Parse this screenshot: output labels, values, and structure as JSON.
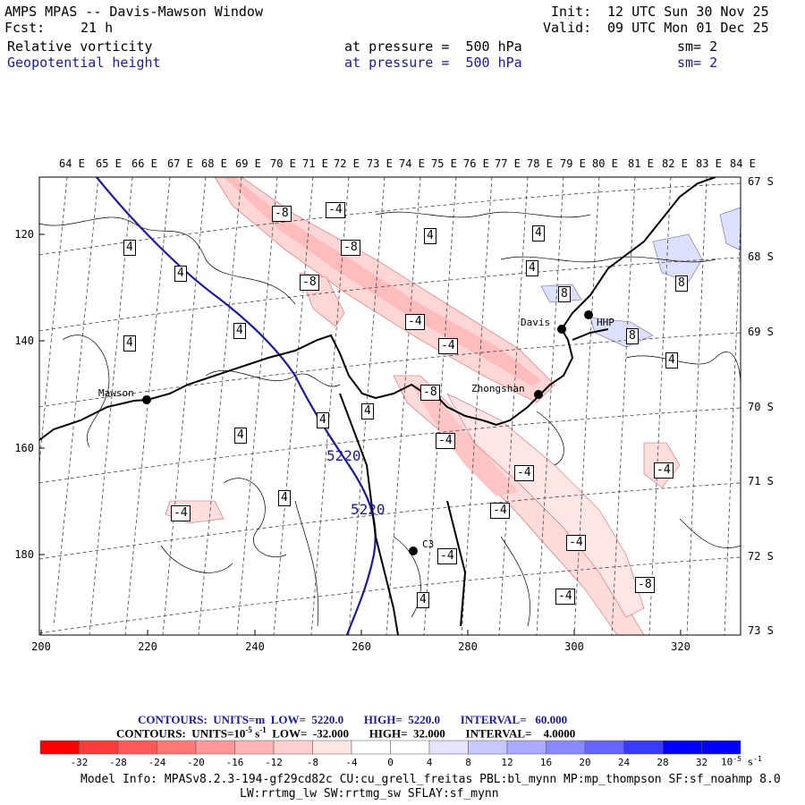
{
  "header": {
    "title": "AMPS MPAS -- Davis-Mawson Window",
    "forecast_label": "Fcst:",
    "forecast_value": "21 h",
    "init_label": "Init:",
    "init_value": "12 UTC Sun 30 Nov 25",
    "valid_label": "Valid:",
    "valid_value": "09 UTC Mon 01 Dec 25"
  },
  "fields": [
    {
      "name": "Relative vorticity",
      "level": "at pressure =  500 hPa",
      "smooth": "sm= 2",
      "color": "#000000"
    },
    {
      "name": "Geopotential height",
      "level": "at pressure =  500 hPa",
      "smooth": "sm= 2",
      "color": "#1a1a9a"
    }
  ],
  "map": {
    "lon_labels": [
      "64 E",
      "65 E",
      "66 E",
      "67 E",
      "68 E",
      "69 E",
      "70 E",
      "71 E",
      "72 E",
      "73 E",
      "74 E",
      "75 E",
      "76 E",
      "77 E",
      "78 E",
      "79 E",
      "80 E",
      "81 E",
      "82 E",
      "83 E",
      "84 E"
    ],
    "lat_labels": [
      "67 S",
      "68 S",
      "69 S",
      "70 S",
      "71 S",
      "72 S",
      "73 S"
    ],
    "y_ticks": [
      "120",
      "140",
      "160",
      "180"
    ],
    "x_ticks": [
      "200",
      "220",
      "240",
      "260",
      "280",
      "300",
      "320"
    ],
    "stations": [
      {
        "name": "Mawson"
      },
      {
        "name": "Davis"
      },
      {
        "name": "HHP"
      },
      {
        "name": "Zhongshan"
      },
      {
        "name": "C3"
      }
    ],
    "contour_labels": [
      "-8",
      "-4",
      "-8",
      "-8",
      "-4",
      "-4",
      "-8",
      "-4",
      "-4",
      "-4",
      "-4",
      "-8",
      "-4",
      "-4",
      "-4",
      "-4",
      "4",
      "4",
      "4",
      "4",
      "4",
      "4",
      "4",
      "4",
      "4",
      "4",
      "4",
      "4",
      "8",
      "8",
      "8",
      "4",
      "5220",
      "5220"
    ]
  },
  "contours_info": {
    "line1": "CONTOURS:  UNITS=m  LOW=  5220.0       HIGH=  5220.0       INTERVAL=   60.000",
    "line2_prefix": "CONTOURS:  UNITS=10",
    "line2_exp": "-5",
    "line2_suffix": " s",
    "line2_exp2": "-1",
    "line2_rest": "  LOW=  -32.000       HIGH=  32.000       INTERVAL=    4.0000"
  },
  "colorbar": {
    "labels": [
      "-32",
      "-28",
      "-24",
      "-20",
      "-16",
      "-12",
      "-8",
      "-4",
      "0",
      "4",
      "8",
      "12",
      "16",
      "20",
      "24",
      "28",
      "32"
    ],
    "unit_base": "10",
    "unit_exp": "-5",
    "unit_tail": " s",
    "unit_exp2": "-1",
    "colors": [
      "#ff0000",
      "#ff3a3a",
      "#ff5a5a",
      "#ff7878",
      "#ff9898",
      "#ffb4b4",
      "#ffd0d0",
      "#ffe6e6",
      "#ffffff",
      "#ffffff",
      "#e4e4ff",
      "#c8c8ff",
      "#aaaaff",
      "#8888ff",
      "#6666ff",
      "#3a3aff",
      "#0000ff"
    ]
  },
  "model_info": {
    "line1": "Model Info: MPASv8.2.3-194-gf29cd82c CU:cu_grell_freitas PBL:bl_mynn MP:mp_thompson SF:sf_noahmp 8.0",
    "line2": "LW:rrtmg_lw SW:rrtmg_sw SFLAY:sf_mynn"
  }
}
